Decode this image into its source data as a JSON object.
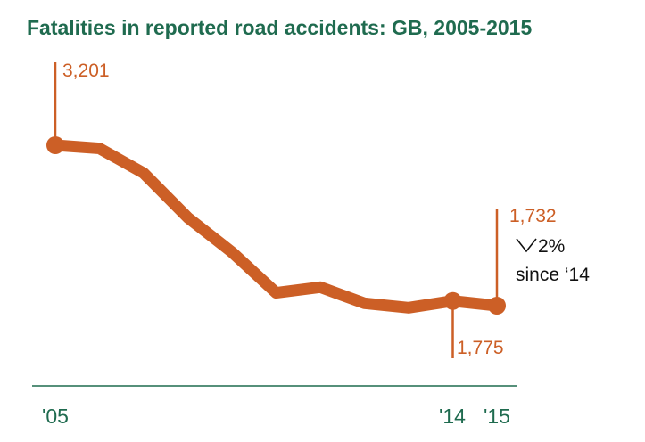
{
  "colors": {
    "series": "#cc5f26",
    "title": "#1f6b4f",
    "axis": "#1f6b4f",
    "text": "#111111"
  },
  "chart_data": {
    "type": "line",
    "title": "Fatalities in reported road accidents: GB, 2005-2015",
    "x": [
      2005,
      2006,
      2007,
      2008,
      2009,
      2010,
      2011,
      2012,
      2013,
      2014,
      2015
    ],
    "series": [
      {
        "values": [
          3201,
          3172,
          2946,
          2538,
          2222,
          1850,
          1901,
          1754,
          1713,
          1775,
          1732
        ]
      }
    ],
    "x_tick_labels": [
      "'05",
      "'14",
      "'15"
    ],
    "ylim": [
      1300,
      3500
    ],
    "grid": false,
    "annotations": {
      "start_value": "3,201",
      "prev_value": "1,775",
      "end_value": "1,732",
      "change_arrow": "down-chevron",
      "change_pct": "2%",
      "change_since": "since ‘14"
    }
  }
}
